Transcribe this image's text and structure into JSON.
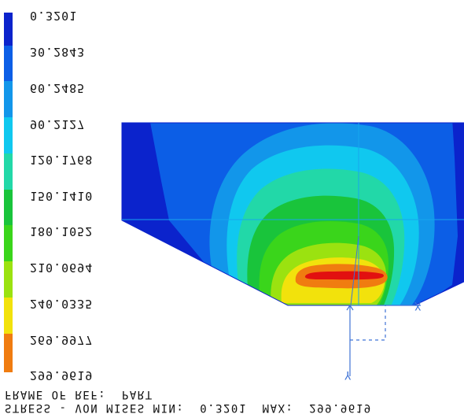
{
  "legend": {
    "colors": [
      "#0b23cc",
      "#0c5ee6",
      "#1296ea",
      "#10c8ef",
      "#22d8a8",
      "#19c43b",
      "#3ad51b",
      "#9be210",
      "#f2e20c",
      "#f07c10",
      "#e21010"
    ],
    "labels": [
      "0.3201",
      "30.2843",
      "60.2485",
      "90.2127",
      "120.1768",
      "150.1410",
      "180.1052",
      "210.0694",
      "240.0335",
      "269.9977",
      "299.9619"
    ]
  },
  "footer": {
    "frame_label": "FRAME OF REF:  PART",
    "stress_label": "STRESS - VON MISES MIN:  0.3201  MAX:  299.9619"
  },
  "triad": {
    "x_label": "X",
    "y_label": "Y"
  },
  "fringe_palette": {
    "blue_dark": "#0b23cc",
    "blue": "#0c5ee6",
    "blue_light": "#1296ea",
    "cyan": "#10c8ef",
    "aqua": "#22d8a8",
    "green": "#19c43b",
    "green_light": "#3ad51b",
    "yellow_green": "#9be210",
    "yellow": "#f2e20c",
    "orange": "#f07c10",
    "red": "#e21010"
  }
}
